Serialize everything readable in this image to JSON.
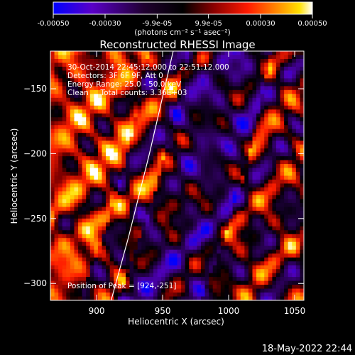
{
  "chart_data": {
    "type": "heatmap",
    "title": "Reconstructed RHESSI Image",
    "xlabel": "Heliocentric X (arcsec)",
    "ylabel": "Heliocentric Y (arcsec)",
    "xlim": [
      865,
      1057
    ],
    "ylim": [
      -313,
      -121
    ],
    "x_ticks": [
      900,
      950,
      1000,
      1050
    ],
    "y_ticks": [
      -150,
      -200,
      -250,
      -300
    ],
    "colorbar": {
      "range": [
        -0.0005,
        0.0005
      ],
      "tick_values": [
        -0.0005,
        -0.0003,
        -9.9e-05,
        9.9e-05,
        0.0003,
        0.0005
      ],
      "tick_labels": [
        "-0.00050",
        "-0.00030",
        "-9.9e-05",
        "9.9e-05",
        "0.00030",
        "0.00050"
      ],
      "unit_label": "(photons cm⁻² s⁻¹ asec⁻²)",
      "colormap": [
        "#0000ff",
        "#4b0082",
        "#000000",
        "#8b0000",
        "#ff0000",
        "#ff8c00",
        "#ffd700",
        "#ffffff"
      ]
    },
    "annotations": {
      "time_range": "30-Oct-2014 22:45:12.000 to 22:51:12.000",
      "detectors": "Detectors: 3F 6F 9F, Att 0",
      "energy": "Energy Range: 25.0 - 50.0 keV",
      "clean": "Clean     Total counts: 3.36E+03",
      "peak": "Position of Peak = [924,-251]"
    },
    "peak_position": [
      924,
      -251
    ],
    "limb_curve": {
      "points": [
        [
          911,
          -313
        ],
        [
          924,
          -265
        ],
        [
          940,
          -200
        ],
        [
          958,
          -121
        ]
      ]
    }
  },
  "footer": {
    "timestamp": "18-May-2022 22:44"
  }
}
